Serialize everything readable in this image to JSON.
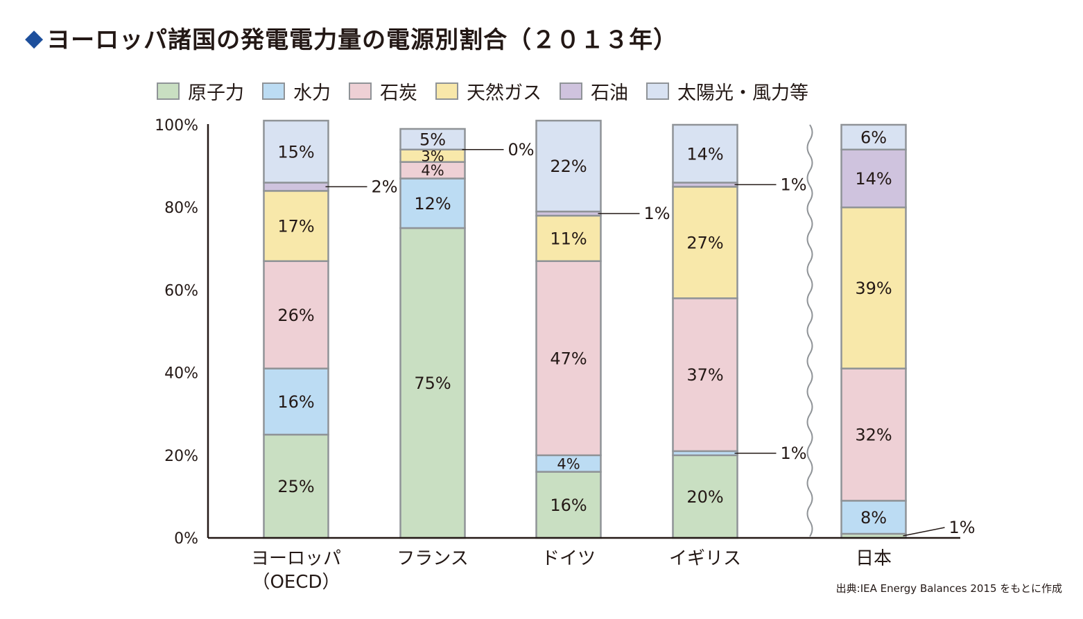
{
  "title": "ヨーロッパ諸国の発電電力量の電源別割合（２０１３年）",
  "title_icon": "diamond-icon",
  "source": "出典:IEA Energy Balances 2015 をもとに作成",
  "colors": {
    "原子力": "#c9dfc2",
    "水力": "#bcdcf3",
    "石炭": "#eed0d5",
    "天然ガス": "#f8e8aa",
    "石油": "#cfc3de",
    "太陽光・風力等": "#d8e2f2",
    "border": "#8f9397",
    "axis": "#231815",
    "title_accent": "#1d4f9c"
  },
  "chart_data": {
    "type": "bar",
    "stacked": true,
    "categories": [
      "ヨーロッパ\n（OECD）",
      "フランス",
      "ドイツ",
      "イギリス",
      "日本"
    ],
    "series": [
      {
        "name": "原子力",
        "values": [
          25,
          75,
          16,
          20,
          1
        ]
      },
      {
        "name": "水力",
        "values": [
          16,
          12,
          4,
          1,
          8
        ]
      },
      {
        "name": "石炭",
        "values": [
          26,
          4,
          47,
          37,
          32
        ]
      },
      {
        "name": "天然ガス",
        "values": [
          17,
          3,
          11,
          27,
          39
        ]
      },
      {
        "name": "石油",
        "values": [
          2,
          0,
          1,
          1,
          14
        ]
      },
      {
        "name": "太陽光・風力等",
        "values": [
          15,
          5,
          22,
          14,
          6
        ]
      }
    ],
    "ylim": [
      0,
      100
    ],
    "yticks": [
      "0%",
      "20%",
      "40%",
      "60%",
      "80%",
      "100%"
    ],
    "axis_break_before": "日本",
    "legend_position": "top",
    "grid": false,
    "callout_segments": [
      {
        "category": "ヨーロッパ\n（OECD）",
        "series": "石油",
        "label": "2%"
      },
      {
        "category": "フランス",
        "series": "石油",
        "label": "0%"
      },
      {
        "category": "ドイツ",
        "series": "石油",
        "label": "1%"
      },
      {
        "category": "イギリス",
        "series": "石油",
        "label": "1%"
      },
      {
        "category": "イギリス",
        "series": "水力",
        "label": "1%"
      },
      {
        "category": "日本",
        "series": "原子力",
        "label": "1%"
      }
    ]
  }
}
